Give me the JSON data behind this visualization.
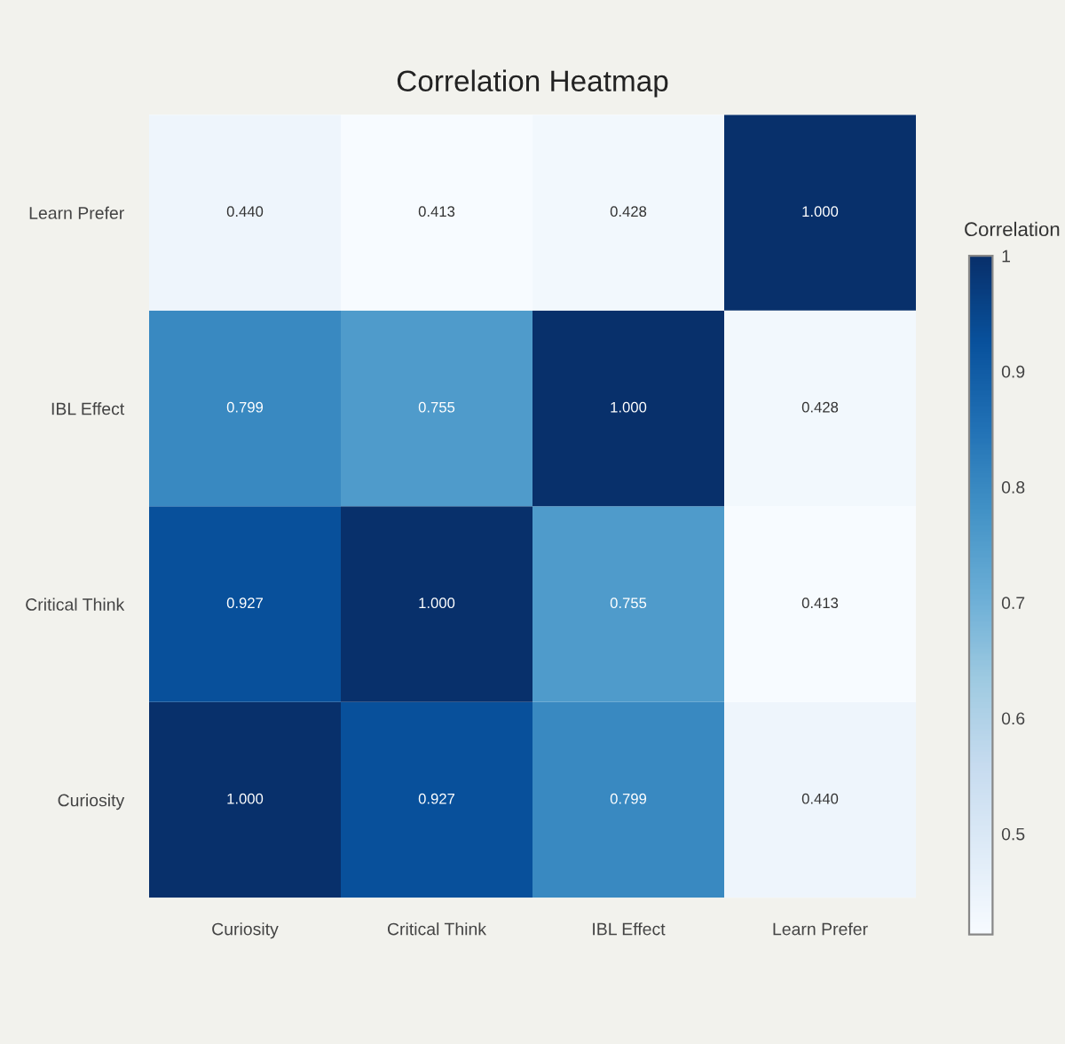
{
  "chart_data": {
    "type": "heatmap",
    "title": "Correlation Heatmap",
    "clabel": "Correlation",
    "categories": [
      "Curiosity",
      "Critical Think",
      "IBL Effect",
      "Learn Prefer"
    ],
    "y_categories": [
      "Learn Prefer",
      "IBL Effect",
      "Critical Think",
      "Curiosity"
    ],
    "cells": [
      [
        0.44,
        0.413,
        0.428,
        1.0
      ],
      [
        0.799,
        0.755,
        1.0,
        0.428
      ],
      [
        0.927,
        1.0,
        0.755,
        0.413
      ],
      [
        1.0,
        0.927,
        0.799,
        0.44
      ]
    ],
    "cell_labels": [
      [
        "0.440",
        "0.413",
        "0.428",
        "1.000"
      ],
      [
        "0.799",
        "0.755",
        "1.000",
        "0.428"
      ],
      [
        "0.927",
        "1.000",
        "0.755",
        "0.413"
      ],
      [
        "1.000",
        "0.927",
        "0.799",
        "0.440"
      ]
    ],
    "clim": [
      0.413,
      1
    ],
    "cticks": [
      0.5,
      0.6,
      0.7,
      0.8,
      0.9,
      1
    ]
  }
}
